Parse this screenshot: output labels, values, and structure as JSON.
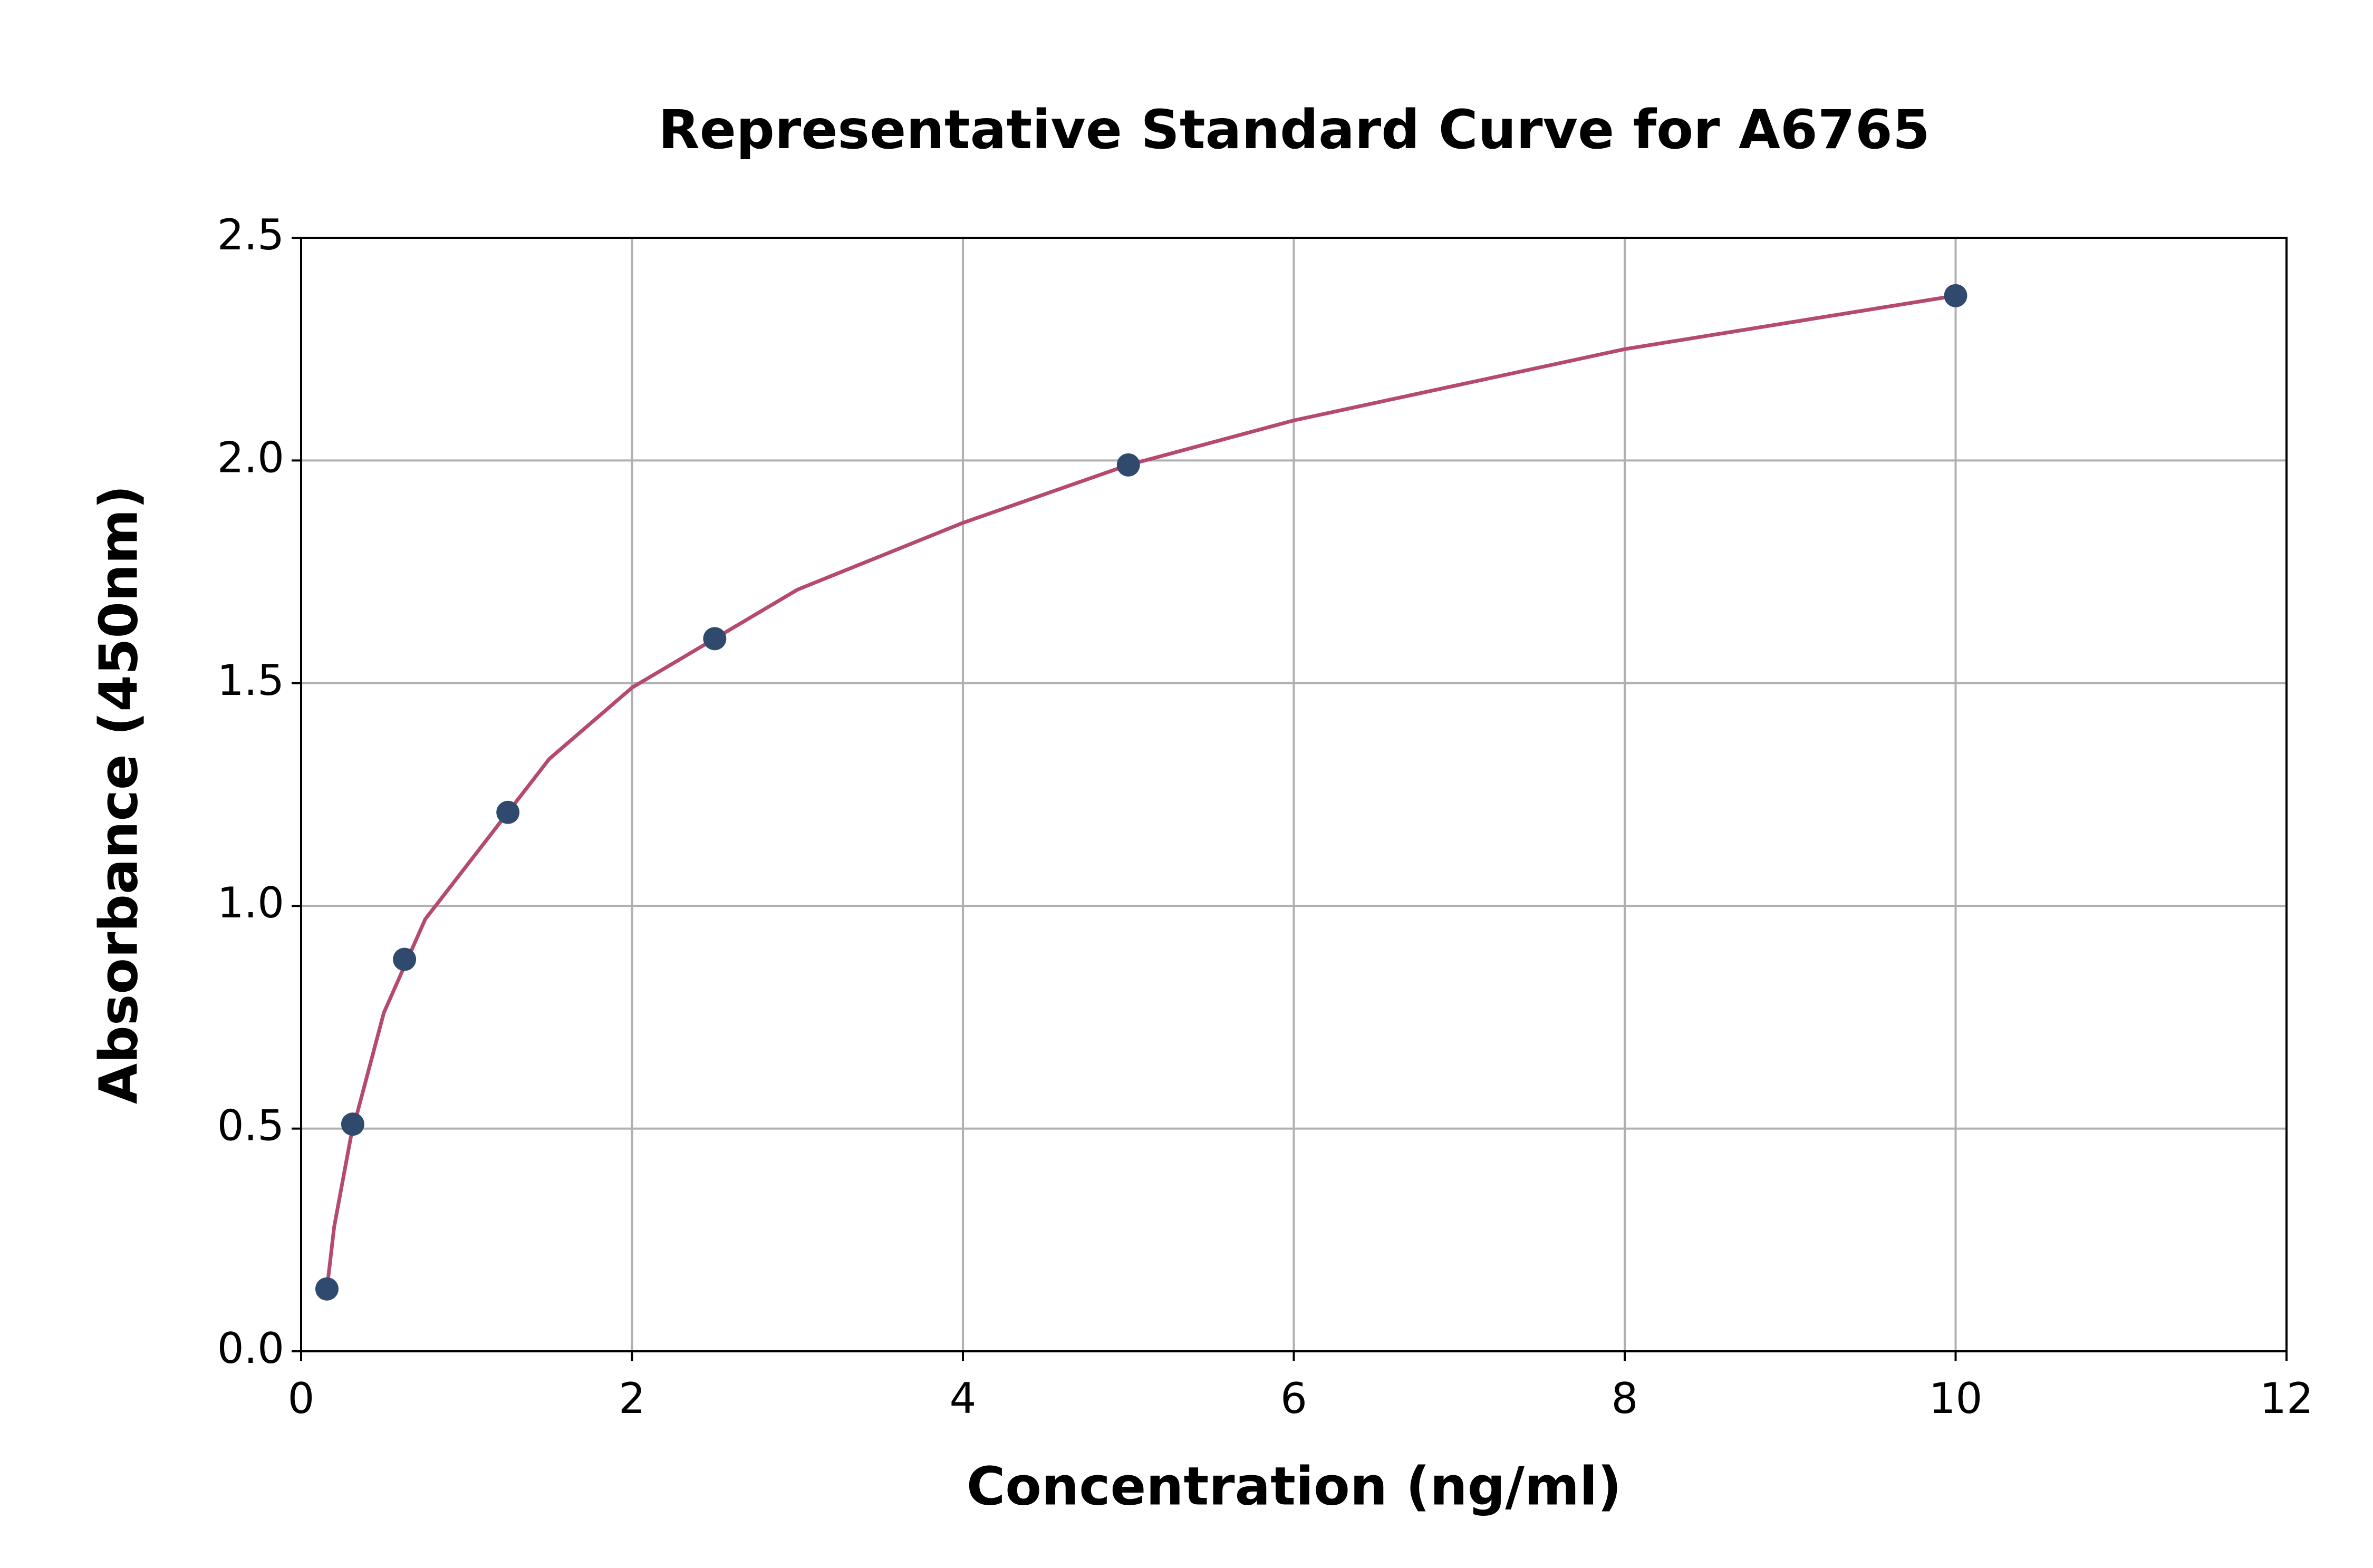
{
  "chart_data": {
    "type": "scatter",
    "title": "Representative Standard Curve for A6765",
    "x_label": "Concentration (ng/ml)",
    "y_label": "Absorbance (450nm)",
    "xlim": [
      0,
      12
    ],
    "ylim": [
      0,
      2.5
    ],
    "xticks": [
      0,
      2,
      4,
      6,
      8,
      10,
      12
    ],
    "yticks": [
      {
        "value": 0,
        "label": "0.0"
      },
      0.5,
      {
        "value": 1,
        "label": "1.0"
      },
      1.5,
      {
        "value": 2,
        "label": "2.0"
      },
      2.5
    ],
    "grid": true,
    "series": [
      {
        "type": "line",
        "color": "#b5496e",
        "x": [
          0.156,
          0.2,
          0.3,
          0.4,
          0.5,
          0.75,
          1,
          1.5,
          2,
          3,
          4,
          5,
          6,
          7,
          8,
          9,
          10
        ],
        "values": [
          0.14,
          0.28,
          0.48,
          0.62,
          0.76,
          0.97,
          1.09,
          1.33,
          1.49,
          1.71,
          1.86,
          1.99,
          2.09,
          2.17,
          2.25,
          2.31,
          2.37
        ]
      },
      {
        "type": "scatter",
        "color": "#2f4a6d",
        "x": [
          0.156,
          0.312,
          0.625,
          1.25,
          2.5,
          5,
          10
        ],
        "values": [
          0.14,
          0.51,
          0.88,
          1.21,
          1.6,
          1.99,
          2.37
        ]
      }
    ]
  }
}
